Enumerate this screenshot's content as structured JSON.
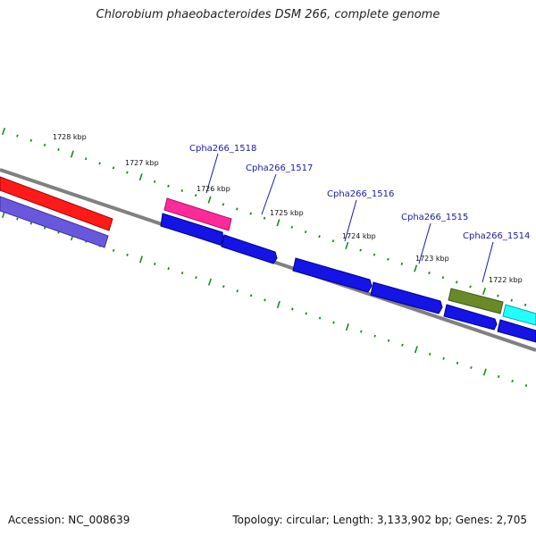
{
  "title": "Chlorobium phaeobacteroides DSM 266, complete genome",
  "footer": {
    "accession": "Accession: NC_008639",
    "topology": "Topology: circular; Length: 3,133,902 bp; Genes: 2,705"
  },
  "colors": {
    "backbone": "#808080",
    "tick": "#1b8a1b",
    "gene_label": "#1a1aa8",
    "red": "#ff1a1a",
    "purple": "#7060e0",
    "magenta": "#ff2a9a",
    "blue": "#1414e6",
    "olive": "#6a8a2a",
    "cyan": "#22ffff"
  },
  "kbp_labels": [
    "1728 kbp",
    "1727 kbp",
    "1726 kbp",
    "1725 kbp",
    "1724 kbp",
    "1723 kbp",
    "1722 kbp"
  ],
  "gene_labels": [
    "Cpha266_1518",
    "Cpha266_1517",
    "Cpha266_1516",
    "Cpha266_1515",
    "Cpha266_1514"
  ]
}
